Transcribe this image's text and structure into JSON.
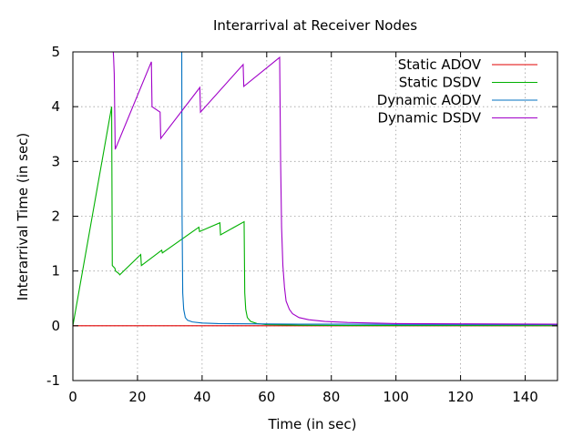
{
  "chart_data": {
    "type": "line",
    "title": "Interarrival at Receiver Nodes",
    "xlabel": "Time (in sec)",
    "ylabel": "Interarrival Time (in sec)",
    "xlim": [
      0,
      150
    ],
    "ylim": [
      -1,
      5
    ],
    "xticks": [
      0,
      20,
      40,
      60,
      80,
      100,
      120,
      140
    ],
    "yticks": [
      -1,
      0,
      1,
      2,
      3,
      4,
      5
    ],
    "grid": true,
    "legend_position": "top-right",
    "series": [
      {
        "name": "Static ADOV",
        "color": "#e00000",
        "points": [
          [
            0,
            0
          ],
          [
            150,
            0
          ]
        ]
      },
      {
        "name": "Static DSDV",
        "color": "#00b000",
        "points": [
          [
            0,
            0
          ],
          [
            12,
            4.0
          ],
          [
            12.2,
            1.1
          ],
          [
            13,
            1.05
          ],
          [
            13.2,
            1.0
          ],
          [
            14.3,
            0.95
          ],
          [
            14.5,
            0.93
          ],
          [
            21,
            1.3
          ],
          [
            21.2,
            1.1
          ],
          [
            27.5,
            1.38
          ],
          [
            27.7,
            1.33
          ],
          [
            39,
            1.8
          ],
          [
            39.2,
            1.72
          ],
          [
            45.5,
            1.88
          ],
          [
            45.7,
            1.66
          ],
          [
            53,
            1.9
          ],
          [
            53.2,
            0.6
          ],
          [
            53.5,
            0.3
          ],
          [
            54,
            0.15
          ],
          [
            55,
            0.08
          ],
          [
            57,
            0.04
          ],
          [
            60,
            0.02
          ],
          [
            70,
            0.01
          ],
          [
            85,
            0.005
          ],
          [
            150,
            0.003
          ]
        ]
      },
      {
        "name": "Dynamic AODV",
        "color": "#0070c0",
        "points": [
          [
            33.7,
            5.1
          ],
          [
            33.8,
            2.0
          ],
          [
            34,
            0.6
          ],
          [
            34.3,
            0.3
          ],
          [
            34.8,
            0.15
          ],
          [
            35.5,
            0.1
          ],
          [
            37,
            0.07
          ],
          [
            40,
            0.05
          ],
          [
            45,
            0.04
          ],
          [
            55,
            0.035
          ],
          [
            70,
            0.03
          ],
          [
            85,
            0.03
          ],
          [
            100,
            0.025
          ],
          [
            100.2,
            0.02
          ],
          [
            150,
            0.02
          ]
        ]
      },
      {
        "name": "Dynamic DSDV",
        "color": "#a000c8",
        "points": [
          [
            12.4,
            5.1
          ],
          [
            12.6,
            4.9
          ],
          [
            12.8,
            4.6
          ],
          [
            13.1,
            3.22
          ],
          [
            24.3,
            4.82
          ],
          [
            24.5,
            4.0
          ],
          [
            27,
            3.9
          ],
          [
            27.2,
            3.42
          ],
          [
            39.3,
            4.35
          ],
          [
            39.5,
            3.9
          ],
          [
            52.7,
            4.77
          ],
          [
            52.9,
            4.37
          ],
          [
            64,
            4.9
          ],
          [
            64.3,
            3.0
          ],
          [
            64.6,
            1.8
          ],
          [
            65,
            1.1
          ],
          [
            65.5,
            0.7
          ],
          [
            66,
            0.45
          ],
          [
            67,
            0.3
          ],
          [
            68,
            0.22
          ],
          [
            70,
            0.15
          ],
          [
            73,
            0.11
          ],
          [
            78,
            0.08
          ],
          [
            85,
            0.06
          ],
          [
            100,
            0.04
          ],
          [
            120,
            0.035
          ],
          [
            150,
            0.03
          ]
        ]
      }
    ]
  }
}
